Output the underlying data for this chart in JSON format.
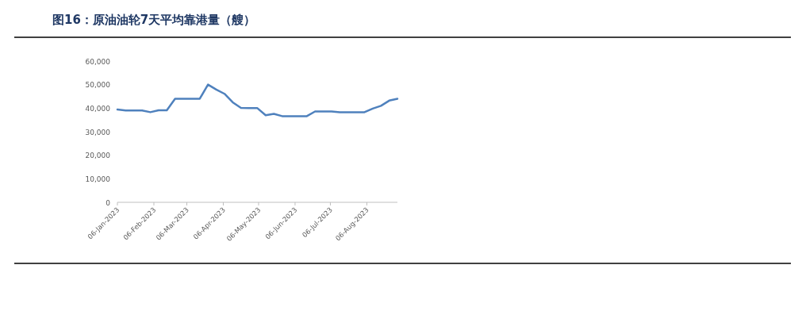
{
  "chart_data": {
    "type": "line",
    "title": "图16：原油油轮7天平均靠港量（艘）",
    "x": [
      "2023-01-06",
      "2023-01-13",
      "2023-01-20",
      "2023-01-27",
      "2023-02-03",
      "2023-02-10",
      "2023-02-17",
      "2023-02-24",
      "2023-03-03",
      "2023-03-10",
      "2023-03-17",
      "2023-03-24",
      "2023-03-31",
      "2023-04-07",
      "2023-04-14",
      "2023-04-21",
      "2023-04-28",
      "2023-05-05",
      "2023-05-12",
      "2023-05-19",
      "2023-05-26",
      "2023-06-02",
      "2023-06-09",
      "2023-06-16",
      "2023-06-23",
      "2023-06-30",
      "2023-07-07",
      "2023-07-14",
      "2023-07-21",
      "2023-07-28",
      "2023-08-04",
      "2023-08-11",
      "2023-08-18",
      "2023-08-25",
      "2023-09-01"
    ],
    "series": [
      {
        "color": "#4f81bd",
        "values": [
          39400,
          39000,
          39000,
          39000,
          38300,
          39100,
          39100,
          44000,
          44000,
          44000,
          44000,
          50000,
          47900,
          46100,
          42500,
          40100,
          40000,
          40000,
          37000,
          37600,
          36600,
          36600,
          36600,
          36600,
          38600,
          38600,
          38600,
          38300,
          38300,
          38300,
          38300,
          39800,
          41000,
          43200,
          44000
        ]
      }
    ],
    "xlim": [
      "2023-01-06",
      "2023-09-01"
    ],
    "xticks": [
      {
        "value": "2023-01-06",
        "label": "06-Jan-2023"
      },
      {
        "value": "2023-02-06",
        "label": "06-Feb-2023"
      },
      {
        "value": "2023-03-06",
        "label": "06-Mar-2023"
      },
      {
        "value": "2023-04-06",
        "label": "06-Apr-2023"
      },
      {
        "value": "2023-05-06",
        "label": "06-May-2023"
      },
      {
        "value": "2023-06-06",
        "label": "06-Jun-2023"
      },
      {
        "value": "2023-07-06",
        "label": "06-Jul-2023"
      },
      {
        "value": "2023-08-06",
        "label": "06-Aug-2023"
      }
    ],
    "ylim": [
      0,
      60000
    ],
    "yticks": [
      {
        "value": 0,
        "label": "0"
      },
      {
        "value": 10000,
        "label": "10,000"
      },
      {
        "value": 20000,
        "label": "20,000"
      },
      {
        "value": 30000,
        "label": "30,000"
      },
      {
        "value": 40000,
        "label": "40,000"
      },
      {
        "value": 50000,
        "label": "50,000"
      },
      {
        "value": 60000,
        "label": "60,000"
      }
    ],
    "grid": false,
    "marker": "none",
    "line_style": "solid"
  }
}
